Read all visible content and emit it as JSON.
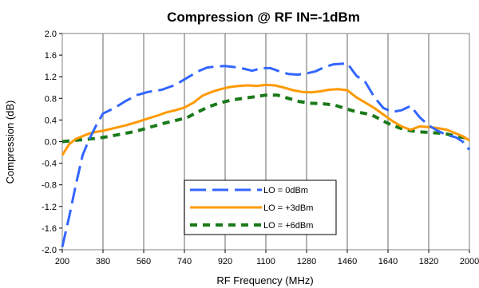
{
  "chart_data": {
    "type": "line",
    "title": "Compression @ RF IN=-1dBm",
    "xlabel": "RF Frequency (MHz)",
    "ylabel": "Compression (dB)",
    "xlim": [
      200,
      2000
    ],
    "ylim": [
      -2.0,
      2.0
    ],
    "x_ticks": [
      "200",
      "380",
      "560",
      "740",
      "920",
      "1100",
      "1280",
      "1460",
      "1640",
      "1820",
      "2000"
    ],
    "y_ticks": [
      "2.0",
      "1.6",
      "1.2",
      "0.8",
      "0.4",
      "0.0",
      "-0.4",
      "-0.8",
      "-1.2",
      "-1.6",
      "-2.0"
    ],
    "grid": "vertical",
    "legend_position": "center-bottom",
    "series": [
      {
        "name": "LO = 0dBm",
        "color": "#3366ff",
        "dash": "long-dash",
        "points": [
          [
            200,
            -1.95
          ],
          [
            230,
            -1.4
          ],
          [
            260,
            -0.8
          ],
          [
            290,
            -0.25
          ],
          [
            320,
            0.05
          ],
          [
            350,
            0.3
          ],
          [
            380,
            0.52
          ],
          [
            430,
            0.62
          ],
          [
            480,
            0.75
          ],
          [
            530,
            0.86
          ],
          [
            580,
            0.92
          ],
          [
            640,
            0.96
          ],
          [
            700,
            1.05
          ],
          [
            760,
            1.2
          ],
          [
            800,
            1.3
          ],
          [
            840,
            1.37
          ],
          [
            880,
            1.39
          ],
          [
            920,
            1.4
          ],
          [
            960,
            1.38
          ],
          [
            1000,
            1.35
          ],
          [
            1040,
            1.31
          ],
          [
            1080,
            1.36
          ],
          [
            1120,
            1.36
          ],
          [
            1160,
            1.3
          ],
          [
            1200,
            1.25
          ],
          [
            1240,
            1.24
          ],
          [
            1280,
            1.26
          ],
          [
            1320,
            1.3
          ],
          [
            1360,
            1.38
          ],
          [
            1400,
            1.43
          ],
          [
            1440,
            1.44
          ],
          [
            1460,
            1.45
          ],
          [
            1500,
            1.22
          ],
          [
            1540,
            1.1
          ],
          [
            1580,
            0.82
          ],
          [
            1620,
            0.62
          ],
          [
            1660,
            0.55
          ],
          [
            1700,
            0.58
          ],
          [
            1740,
            0.66
          ],
          [
            1780,
            0.45
          ],
          [
            1820,
            0.3
          ],
          [
            1860,
            0.2
          ],
          [
            1900,
            0.12
          ],
          [
            1940,
            0.08
          ],
          [
            1970,
            0.0
          ],
          [
            2000,
            -0.15
          ]
        ]
      },
      {
        "name": "LO = +3dBm",
        "color": "#ff9900",
        "dash": "solid",
        "points": [
          [
            200,
            -0.25
          ],
          [
            230,
            -0.05
          ],
          [
            260,
            0.05
          ],
          [
            290,
            0.1
          ],
          [
            320,
            0.15
          ],
          [
            350,
            0.18
          ],
          [
            380,
            0.2
          ],
          [
            430,
            0.25
          ],
          [
            480,
            0.3
          ],
          [
            530,
            0.36
          ],
          [
            580,
            0.43
          ],
          [
            620,
            0.48
          ],
          [
            660,
            0.54
          ],
          [
            700,
            0.58
          ],
          [
            740,
            0.63
          ],
          [
            780,
            0.72
          ],
          [
            820,
            0.85
          ],
          [
            860,
            0.92
          ],
          [
            900,
            0.97
          ],
          [
            940,
            1.01
          ],
          [
            980,
            1.03
          ],
          [
            1020,
            1.04
          ],
          [
            1060,
            1.03
          ],
          [
            1100,
            1.05
          ],
          [
            1140,
            1.04
          ],
          [
            1180,
            1.0
          ],
          [
            1220,
            0.95
          ],
          [
            1260,
            0.92
          ],
          [
            1300,
            0.91
          ],
          [
            1340,
            0.93
          ],
          [
            1380,
            0.96
          ],
          [
            1420,
            0.97
          ],
          [
            1460,
            0.95
          ],
          [
            1500,
            0.82
          ],
          [
            1540,
            0.72
          ],
          [
            1580,
            0.62
          ],
          [
            1620,
            0.5
          ],
          [
            1660,
            0.38
          ],
          [
            1700,
            0.28
          ],
          [
            1740,
            0.22
          ],
          [
            1780,
            0.28
          ],
          [
            1820,
            0.27
          ],
          [
            1860,
            0.25
          ],
          [
            1900,
            0.22
          ],
          [
            1940,
            0.15
          ],
          [
            1970,
            0.1
          ],
          [
            2000,
            0.02
          ]
        ]
      },
      {
        "name": "LO = +6dBm",
        "color": "#1a7a1a",
        "dash": "dash",
        "points": [
          [
            200,
            0.0
          ],
          [
            250,
            0.02
          ],
          [
            300,
            0.04
          ],
          [
            350,
            0.06
          ],
          [
            400,
            0.09
          ],
          [
            450,
            0.13
          ],
          [
            500,
            0.17
          ],
          [
            550,
            0.22
          ],
          [
            600,
            0.28
          ],
          [
            650,
            0.34
          ],
          [
            700,
            0.39
          ],
          [
            750,
            0.44
          ],
          [
            800,
            0.55
          ],
          [
            850,
            0.65
          ],
          [
            900,
            0.72
          ],
          [
            950,
            0.77
          ],
          [
            1000,
            0.8
          ],
          [
            1050,
            0.83
          ],
          [
            1100,
            0.86
          ],
          [
            1150,
            0.86
          ],
          [
            1200,
            0.8
          ],
          [
            1250,
            0.74
          ],
          [
            1300,
            0.71
          ],
          [
            1350,
            0.7
          ],
          [
            1400,
            0.68
          ],
          [
            1460,
            0.6
          ],
          [
            1500,
            0.55
          ],
          [
            1540,
            0.52
          ],
          [
            1580,
            0.47
          ],
          [
            1620,
            0.38
          ],
          [
            1660,
            0.3
          ],
          [
            1700,
            0.24
          ],
          [
            1740,
            0.2
          ],
          [
            1780,
            0.18
          ],
          [
            1820,
            0.17
          ],
          [
            1860,
            0.16
          ],
          [
            1900,
            0.14
          ],
          [
            1940,
            0.1
          ],
          [
            1970,
            0.08
          ],
          [
            2000,
            0.05
          ]
        ]
      }
    ]
  }
}
